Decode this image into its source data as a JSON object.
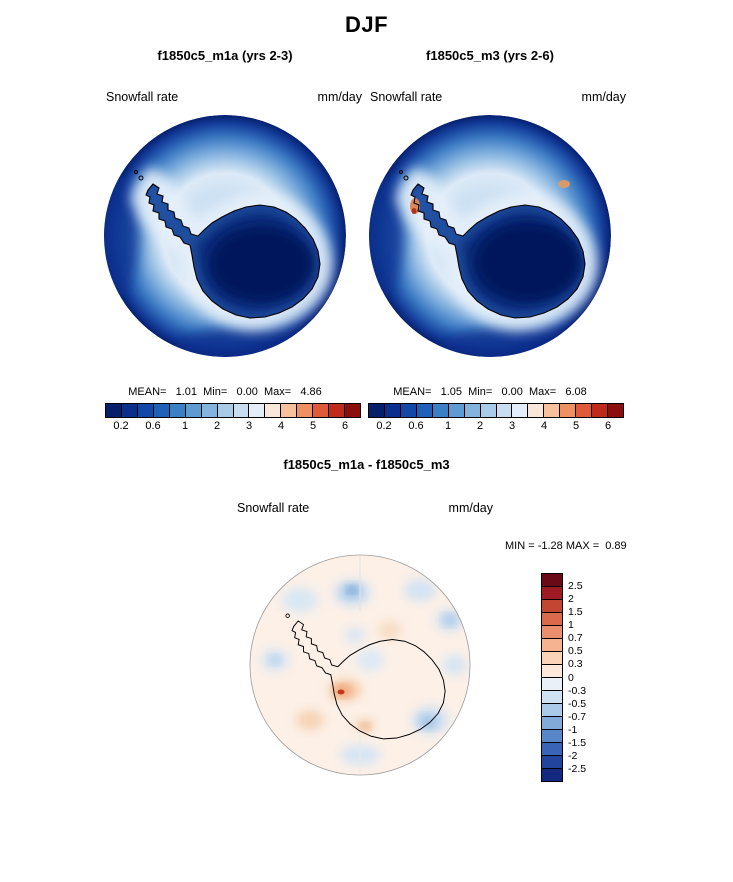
{
  "title": "DJF",
  "panels": [
    {
      "title": "f1850c5_m1a (yrs 2-3)",
      "field": "Snowfall rate",
      "units": "mm/day",
      "stats": "MEAN=   1.01  Min=   0.00  Max=   4.86"
    },
    {
      "title": "f1850c5_m3 (yrs 2-6)",
      "field": "Snowfall rate",
      "units": "mm/day",
      "stats": "MEAN=   1.05  Min=   0.00  Max=   6.08"
    }
  ],
  "diff": {
    "title": "f1850c5_m1a - f1850c5_m3",
    "field": "Snowfall rate",
    "units": "mm/day",
    "minmax": "MIN = -1.28 MAX =  0.89"
  },
  "colorbars": {
    "precip": {
      "colors": [
        "#061f6b",
        "#0a2f8c",
        "#1347a8",
        "#2061b8",
        "#3b7fc4",
        "#5e9bd0",
        "#83b5dc",
        "#a8cce6",
        "#c8def0",
        "#e4eef8",
        "#f9e7d9",
        "#f7c29b",
        "#ef9063",
        "#de5a38",
        "#c02a1d",
        "#8c0f10"
      ],
      "ticks": [
        "0.2",
        "0.6",
        "1",
        "2",
        "3",
        "4",
        "5",
        "6"
      ]
    },
    "diff": {
      "colors": [
        "#6a0a16",
        "#9e1b24",
        "#c34632",
        "#d96a4c",
        "#ea8e6d",
        "#f5b391",
        "#fbd3b8",
        "#fde8da",
        "#e9f0f7",
        "#cfe1f2",
        "#abc9e8",
        "#82abd9",
        "#5886c8",
        "#3a64b6",
        "#23449d",
        "#12297f"
      ],
      "ticks": [
        "2.5",
        "2",
        "1.5",
        "1",
        "0.7",
        "0.5",
        "0.3",
        "0",
        "-0.3",
        "-0.5",
        "-0.7",
        "-1",
        "-1.5",
        "-2",
        "-2.5"
      ]
    }
  },
  "chart_data": [
    {
      "type": "heatmap",
      "subtype": "filled-contour-polar-map",
      "season": "DJF",
      "title": "f1850c5_m1a (yrs 2-3)",
      "variable": "Snowfall rate",
      "units": "mm/day",
      "stats": {
        "mean": 1.01,
        "min": 0.0,
        "max": 4.86
      },
      "contour_levels": [
        0.2,
        0.6,
        1,
        2,
        3,
        4,
        5,
        6
      ],
      "palette": "blue-white-red",
      "legend_position": "bottom"
    },
    {
      "type": "heatmap",
      "subtype": "filled-contour-polar-map",
      "season": "DJF",
      "title": "f1850c5_m3 (yrs 2-6)",
      "variable": "Snowfall rate",
      "units": "mm/day",
      "stats": {
        "mean": 1.05,
        "min": 0.0,
        "max": 6.08
      },
      "contour_levels": [
        0.2,
        0.6,
        1,
        2,
        3,
        4,
        5,
        6
      ],
      "palette": "blue-white-red",
      "legend_position": "bottom"
    },
    {
      "type": "heatmap",
      "subtype": "filled-contour-polar-map-difference",
      "season": "DJF",
      "title": "f1850c5_m1a - f1850c5_m3",
      "variable": "Snowfall rate",
      "units": "mm/day",
      "stats": {
        "min": -1.28,
        "max": 0.89
      },
      "contour_levels": [
        -2.5,
        -2,
        -1.5,
        -1,
        -0.7,
        -0.5,
        -0.3,
        0,
        0.3,
        0.5,
        0.7,
        1,
        1.5,
        2,
        2.5
      ],
      "palette": "red-white-blue-diverging",
      "legend_position": "right"
    }
  ]
}
